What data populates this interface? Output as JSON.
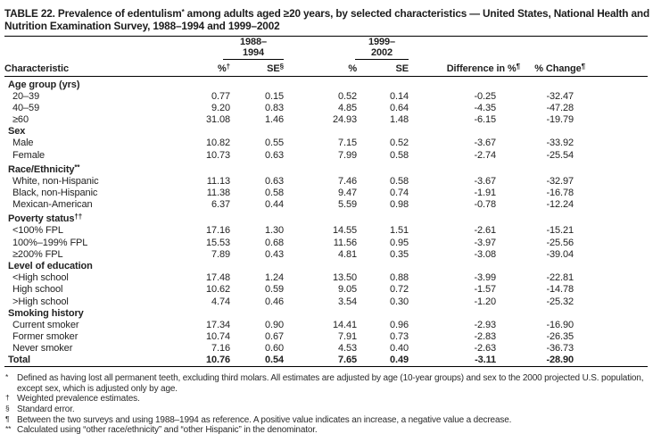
{
  "title": {
    "pre": "TABLE 22. Prevalence of edentulism",
    "sup": "*",
    "post": " among adults aged ≥20 years, by selected characteristics — United States, National Health and Nutrition Examination Survey, 1988–1994 and 1999–2002"
  },
  "table": {
    "group_headers": [
      "1988–1994",
      "1999–2002"
    ],
    "columns": [
      {
        "label": "Characteristic",
        "sup": ""
      },
      {
        "label": "%",
        "sup": "†"
      },
      {
        "label": "SE",
        "sup": "§"
      },
      {
        "label": "%",
        "sup": ""
      },
      {
        "label": "SE",
        "sup": ""
      },
      {
        "label": "Difference in %",
        "sup": "¶"
      },
      {
        "label": "% Change",
        "sup": "¶"
      }
    ],
    "rows": [
      {
        "type": "section",
        "label": "Age group (yrs)",
        "sup": "",
        "values": []
      },
      {
        "type": "data",
        "label": "20–39",
        "sup": "",
        "values": [
          "0.77",
          "0.15",
          "0.52",
          "0.14",
          "-0.25",
          "-32.47"
        ]
      },
      {
        "type": "data",
        "label": "40–59",
        "sup": "",
        "values": [
          "9.20",
          "0.83",
          "4.85",
          "0.64",
          "-4.35",
          "-47.28"
        ]
      },
      {
        "type": "data",
        "label": "≥60",
        "sup": "",
        "values": [
          "31.08",
          "1.46",
          "24.93",
          "1.48",
          "-6.15",
          "-19.79"
        ]
      },
      {
        "type": "section",
        "label": "Sex",
        "sup": "",
        "values": []
      },
      {
        "type": "data",
        "label": "Male",
        "sup": "",
        "values": [
          "10.82",
          "0.55",
          "7.15",
          "0.52",
          "-3.67",
          "-33.92"
        ]
      },
      {
        "type": "data",
        "label": "Female",
        "sup": "",
        "values": [
          "10.73",
          "0.63",
          "7.99",
          "0.58",
          "-2.74",
          "-25.54"
        ]
      },
      {
        "type": "section",
        "label": "Race/Ethnicity",
        "sup": "**",
        "values": []
      },
      {
        "type": "data",
        "label": "White, non-Hispanic",
        "sup": "",
        "values": [
          "11.13",
          "0.63",
          "7.46",
          "0.58",
          "-3.67",
          "-32.97"
        ]
      },
      {
        "type": "data",
        "label": "Black, non-Hispanic",
        "sup": "",
        "values": [
          "11.38",
          "0.58",
          "9.47",
          "0.74",
          "-1.91",
          "-16.78"
        ]
      },
      {
        "type": "data",
        "label": "Mexican-American",
        "sup": "",
        "values": [
          "6.37",
          "0.44",
          "5.59",
          "0.98",
          "-0.78",
          "-12.24"
        ]
      },
      {
        "type": "section",
        "label": "Poverty status",
        "sup": "††",
        "values": []
      },
      {
        "type": "data",
        "label": "<100% FPL",
        "sup": "",
        "values": [
          "17.16",
          "1.30",
          "14.55",
          "1.51",
          "-2.61",
          "-15.21"
        ]
      },
      {
        "type": "data",
        "label": "100%–199% FPL",
        "sup": "",
        "values": [
          "15.53",
          "0.68",
          "11.56",
          "0.95",
          "-3.97",
          "-25.56"
        ]
      },
      {
        "type": "data",
        "label": "≥200% FPL",
        "sup": "",
        "values": [
          "7.89",
          "0.43",
          "4.81",
          "0.35",
          "-3.08",
          "-39.04"
        ]
      },
      {
        "type": "section",
        "label": "Level of education",
        "sup": "",
        "values": []
      },
      {
        "type": "data",
        "label": "<High school",
        "sup": "",
        "values": [
          "17.48",
          "1.24",
          "13.50",
          "0.88",
          "-3.99",
          "-22.81"
        ]
      },
      {
        "type": "data",
        "label": "High school",
        "sup": "",
        "values": [
          "10.62",
          "0.59",
          "9.05",
          "0.72",
          "-1.57",
          "-14.78"
        ]
      },
      {
        "type": "data",
        "label": ">High school",
        "sup": "",
        "values": [
          "4.74",
          "0.46",
          "3.54",
          "0.30",
          "-1.20",
          "-25.32"
        ]
      },
      {
        "type": "section",
        "label": "Smoking history",
        "sup": "",
        "values": []
      },
      {
        "type": "data",
        "label": "Current smoker",
        "sup": "",
        "values": [
          "17.34",
          "0.90",
          "14.41",
          "0.96",
          "-2.93",
          "-16.90"
        ]
      },
      {
        "type": "data",
        "label": "Former smoker",
        "sup": "",
        "values": [
          "10.74",
          "0.67",
          "7.91",
          "0.73",
          "-2.83",
          "-26.35"
        ]
      },
      {
        "type": "data",
        "label": "Never smoker",
        "sup": "",
        "values": [
          "7.16",
          "0.60",
          "4.53",
          "0.40",
          "-2.63",
          "-36.73"
        ]
      },
      {
        "type": "total",
        "label": "Total",
        "sup": "",
        "values": [
          "10.76",
          "0.54",
          "7.65",
          "0.49",
          "-3.11",
          "-28.90"
        ]
      }
    ],
    "footnotes": [
      {
        "marker": "*",
        "text": "Defined as having lost all permanent teeth, excluding third molars. All estimates are adjusted by age (10-year groups) and sex to the 2000 projected U.S. population, except sex, which is adjusted only by age."
      },
      {
        "marker": "†",
        "text": "Weighted prevalence estimates."
      },
      {
        "marker": "§",
        "text": "Standard error."
      },
      {
        "marker": "¶",
        "text": "Between the two surveys and using 1988–1994 as reference. A positive value indicates an increase, a negative value a decrease."
      },
      {
        "marker": "**",
        "text": "Calculated using “other race/ethnicity” and “other Hispanic” in the denominator."
      },
      {
        "marker": "††",
        "text": "Percentage of the Federal Poverty Level (FPL), which varies by income and number of persons living in the household."
      }
    ]
  }
}
